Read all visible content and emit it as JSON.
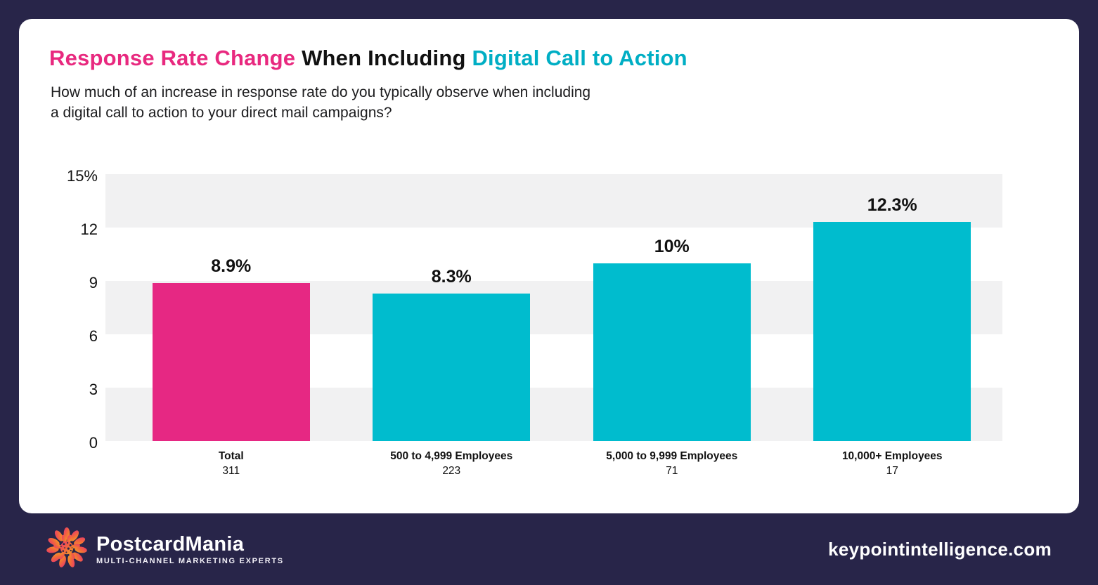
{
  "header": {
    "title_part1": "Response Rate Change",
    "title_part2": " When Including ",
    "title_part3": "Digital Call to Action",
    "subtitle_line1": "How much of an increase in response rate do you typically observe when including",
    "subtitle_line2": "a digital call to action to your direct mail campaigns?"
  },
  "chart_data": {
    "type": "bar",
    "title": "Response Rate Change When Including Digital Call to Action",
    "categories": [
      "Total",
      "500 to 4,999 Employees",
      "5,000 to 9,999 Employees",
      "10,000+ Employees"
    ],
    "counts": [
      "311",
      "223",
      "71",
      "17"
    ],
    "values": [
      8.9,
      8.3,
      10,
      12.3
    ],
    "value_labels": [
      "8.9%",
      "8.3%",
      "10%",
      "12.3%"
    ],
    "bar_colors": [
      "#E62883",
      "#00BCCE",
      "#00BCCE",
      "#00BCCE"
    ],
    "xlabel": "",
    "ylabel": "",
    "ylim": [
      0,
      15
    ],
    "yticks": [
      0,
      3,
      6,
      9,
      12,
      15
    ],
    "ytick_labels": [
      "0",
      "3",
      "6",
      "9",
      "12",
      "15%"
    ],
    "grid": "alternating horizontal bands every 3 units (gray/white)",
    "legend": "none"
  },
  "footer": {
    "brand_name": "PostcardMania",
    "brand_tagline": "MULTI-CHANNEL MARKETING EXPERTS",
    "website": "keypointintelligence.com",
    "logo_icon": "starburst-flower-icon"
  },
  "colors": {
    "background_navy": "#282549",
    "card_white": "#ffffff",
    "accent_pink": "#E62883",
    "accent_cyan": "#00BCCE",
    "title_pink": "#E8297F",
    "title_cyan": "#00AEC4",
    "band_gray": "#f1f1f2",
    "text_black": "#111111"
  }
}
